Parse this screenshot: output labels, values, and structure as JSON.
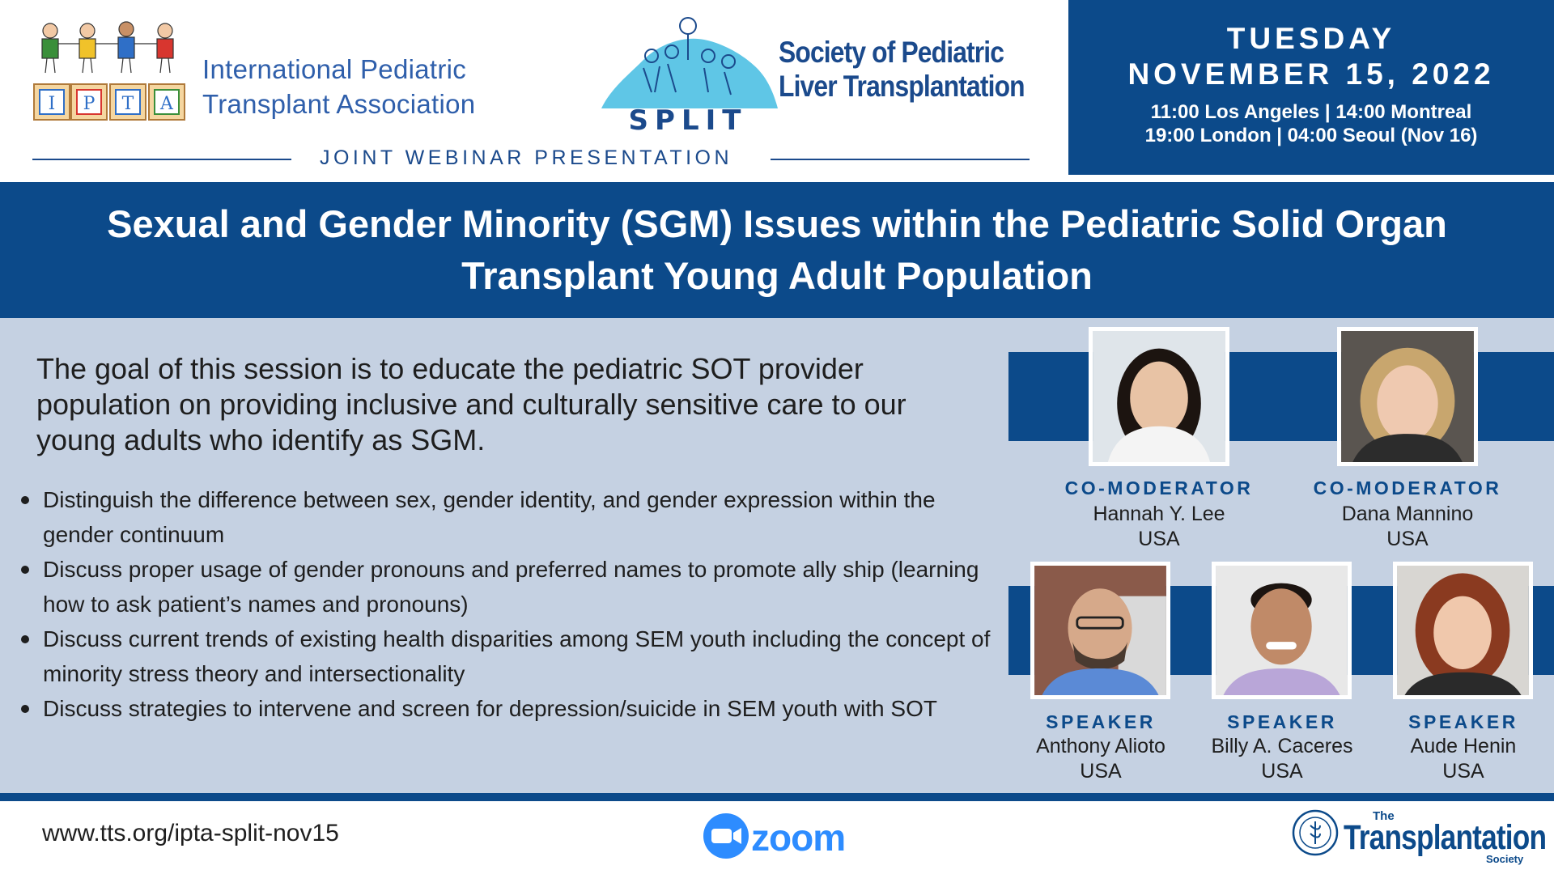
{
  "header": {
    "ipta_org_line1": "International Pediatric",
    "ipta_org_line2": "Transplant Association",
    "ipta_blocks": [
      "I",
      "P",
      "T",
      "A"
    ],
    "split_acronym": "SPLIT",
    "split_org_line1": "Society of Pediatric",
    "split_org_line2": "Liver Transplantation",
    "joint_label": "JOINT WEBINAR PRESENTATION"
  },
  "event": {
    "day_of_week": "TUESDAY",
    "date": "NOVEMBER 15, 2022",
    "times_line1": "11:00 Los Angeles | 14:00 Montreal",
    "times_line2": "19:00 London | 04:00 Seoul (Nov 16)"
  },
  "title": {
    "line1": "Sexual and Gender Minority (SGM) Issues within the Pediatric Solid Organ",
    "line2": "Transplant Young Adult Population"
  },
  "goal": "The goal of this session is to educate the pediatric SOT provider population on providing inclusive and culturally sensitive care to our young adults who identify as SGM.",
  "objectives": [
    "Distinguish the difference between sex, gender identity, and gender expression within the gender continuum",
    "Discuss proper usage of gender pronouns and preferred names to promote ally ship (learning how to ask patient’s names and pronouns)",
    "Discuss current trends of existing health disparities among SEM youth including the concept of minority stress theory and intersectionality",
    "Discuss strategies to intervene and screen for depression/suicide in SEM youth with SOT"
  ],
  "people": [
    {
      "role": "CO-MODERATOR",
      "name": "Hannah Y. Lee",
      "country": "USA"
    },
    {
      "role": "CO-MODERATOR",
      "name": "Dana Mannino",
      "country": "USA"
    },
    {
      "role": "SPEAKER",
      "name": "Anthony Alioto",
      "country": "USA"
    },
    {
      "role": "SPEAKER",
      "name": "Billy A. Caceres",
      "country": "USA"
    },
    {
      "role": "SPEAKER",
      "name": "Aude Henin",
      "country": "USA"
    }
  ],
  "footer": {
    "url": "www.tts.org/ipta-split-nov15",
    "zoom_label": "zoom",
    "tts_the": "The",
    "tts_name": "Transplantation",
    "tts_society": "Society"
  },
  "colors": {
    "navy": "#0c4a8a",
    "panel": "#c5d1e2",
    "zoom_blue": "#2d8cff",
    "ipta_blue": "#2f5fab"
  },
  "icons": [
    "ipta-children-logo",
    "split-logo",
    "zoom-camera-icon",
    "tts-seal-icon"
  ]
}
